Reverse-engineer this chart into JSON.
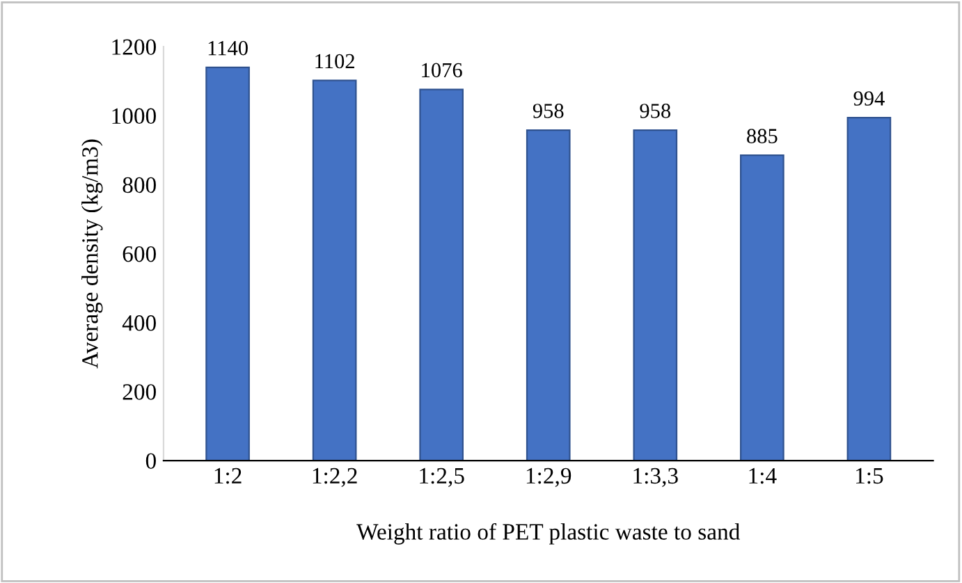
{
  "chart_data": {
    "type": "bar",
    "xlabel": "Weight ratio of PET plastic waste to sand",
    "ylabel": "Average density (kg/m3)",
    "categories": [
      "1:2",
      "1:2,2",
      "1:2,5",
      "1:2,9",
      "1:3,3",
      "1:4",
      "1:5"
    ],
    "values": [
      1140,
      1102,
      1076,
      958,
      958,
      885,
      994
    ],
    "color": "#4472c4",
    "ylim": [
      0,
      1200
    ],
    "yticks": [
      0,
      200,
      400,
      600,
      800,
      1000,
      1200
    ],
    "grid": false,
    "data_labels": true
  }
}
